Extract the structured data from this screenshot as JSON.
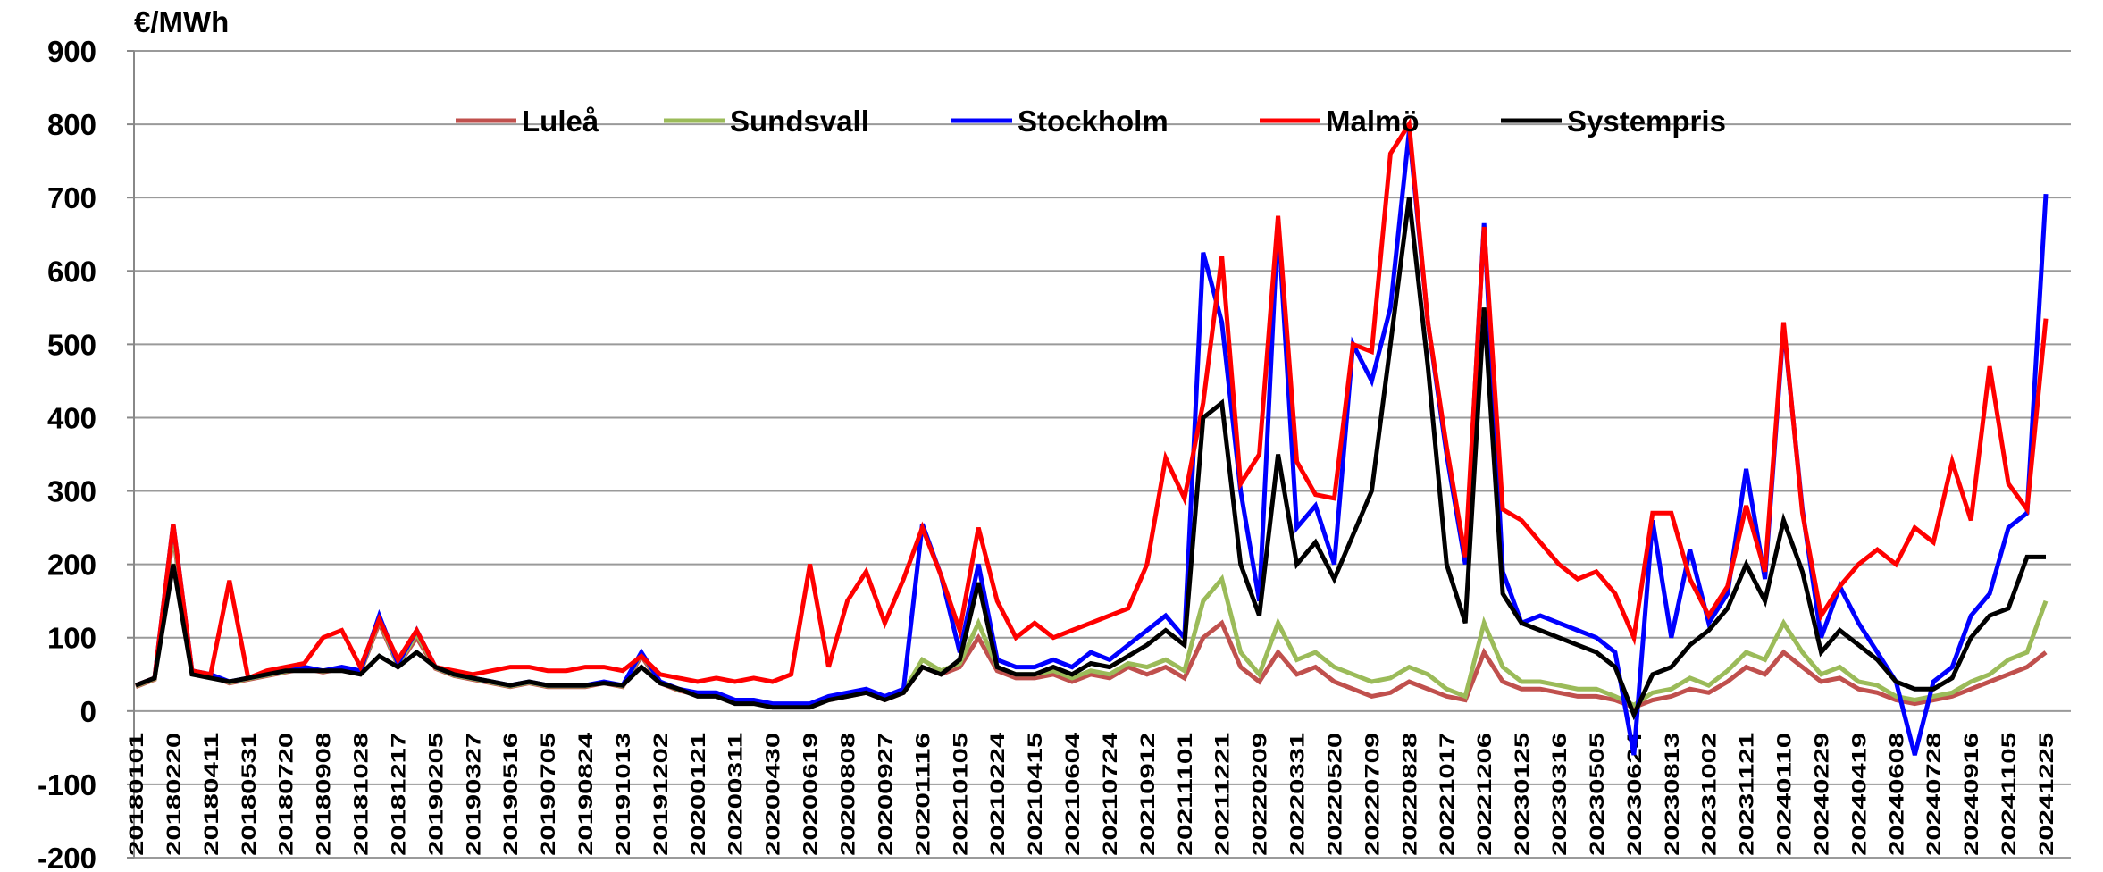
{
  "chart_data": {
    "type": "line",
    "y_label": "€/MWh",
    "categories": [
      "20180101",
      null,
      "20180220",
      null,
      "20180411",
      null,
      "20180531",
      null,
      "20180720",
      null,
      "20180908",
      null,
      "20181028",
      null,
      "20181217",
      null,
      "20190205",
      null,
      "20190327",
      null,
      "20190516",
      null,
      "20190705",
      null,
      "20190824",
      null,
      "20191013",
      null,
      "20191202",
      null,
      "20200121",
      null,
      "20200311",
      null,
      "20200430",
      null,
      "20200619",
      null,
      "20200808",
      null,
      "20200927",
      null,
      "20201116",
      null,
      "20210105",
      null,
      "20210224",
      null,
      "20210415",
      null,
      "20210604",
      null,
      "20210724",
      null,
      "20210912",
      null,
      "20211101",
      null,
      "20211221",
      null,
      "20220209",
      null,
      "20220331",
      null,
      "20220520",
      null,
      "20220709",
      null,
      "20220828",
      null,
      "20221017",
      null,
      "20221206",
      null,
      "20230125",
      null,
      "20230316",
      null,
      "20230505",
      null,
      "20230624",
      null,
      "20230813",
      null,
      "20231002",
      null,
      "20231121",
      null,
      "20240110",
      null,
      "20240229",
      null,
      "20240419",
      null,
      "20240608",
      null,
      "20240728",
      null,
      "20240916",
      null,
      "20241105",
      null,
      "20241225"
    ],
    "series": [
      {
        "name": "Luleå",
        "color": "#c0504d",
        "values": [
          33,
          43,
          240,
          52,
          48,
          38,
          43,
          48,
          53,
          58,
          53,
          58,
          53,
          120,
          62,
          100,
          58,
          48,
          43,
          38,
          33,
          38,
          33,
          33,
          33,
          38,
          33,
          75,
          38,
          28,
          22,
          22,
          12,
          12,
          8,
          8,
          8,
          15,
          20,
          25,
          15,
          25,
          60,
          50,
          60,
          100,
          55,
          45,
          45,
          50,
          40,
          50,
          45,
          60,
          50,
          60,
          45,
          100,
          120,
          60,
          40,
          80,
          50,
          60,
          40,
          30,
          20,
          25,
          40,
          30,
          20,
          15,
          80,
          40,
          30,
          30,
          25,
          20,
          20,
          15,
          5,
          15,
          20,
          30,
          25,
          40,
          60,
          50,
          80,
          60,
          40,
          45,
          30,
          25,
          15,
          10,
          15,
          20,
          30,
          40,
          50,
          60,
          80
        ]
      },
      {
        "name": "Sundsvall",
        "color": "#9bbb59",
        "values": [
          34,
          44,
          245,
          53,
          49,
          39,
          44,
          49,
          54,
          59,
          54,
          59,
          54,
          125,
          63,
          105,
          59,
          49,
          44,
          39,
          34,
          39,
          34,
          34,
          34,
          39,
          34,
          78,
          39,
          29,
          23,
          23,
          13,
          13,
          9,
          9,
          9,
          17,
          22,
          27,
          17,
          27,
          70,
          55,
          65,
          120,
          60,
          50,
          50,
          55,
          45,
          55,
          50,
          65,
          60,
          70,
          55,
          150,
          180,
          80,
          50,
          120,
          70,
          80,
          60,
          50,
          40,
          45,
          60,
          50,
          30,
          20,
          120,
          60,
          40,
          40,
          35,
          30,
          30,
          20,
          8,
          25,
          30,
          45,
          35,
          55,
          80,
          70,
          120,
          80,
          50,
          60,
          40,
          35,
          20,
          15,
          20,
          25,
          40,
          50,
          70,
          80,
          150
        ]
      },
      {
        "name": "Stockholm",
        "color": "#0000ff",
        "values": [
          35,
          45,
          255,
          55,
          50,
          40,
          45,
          50,
          55,
          60,
          55,
          60,
          55,
          130,
          65,
          110,
          60,
          50,
          45,
          40,
          35,
          40,
          35,
          35,
          35,
          40,
          35,
          80,
          40,
          30,
          25,
          25,
          15,
          15,
          10,
          10,
          10,
          20,
          25,
          30,
          20,
          30,
          255,
          185,
          80,
          200,
          70,
          60,
          60,
          70,
          60,
          80,
          70,
          90,
          110,
          130,
          100,
          625,
          530,
          300,
          150,
          670,
          250,
          280,
          200,
          500,
          450,
          550,
          790,
          530,
          350,
          200,
          665,
          190,
          120,
          130,
          120,
          110,
          100,
          80,
          -60,
          260,
          100,
          220,
          120,
          160,
          330,
          180,
          525,
          275,
          100,
          170,
          120,
          80,
          40,
          -60,
          40,
          60,
          130,
          160,
          250,
          270,
          705
        ]
      },
      {
        "name": "Malmö",
        "color": "#ff0000",
        "values": [
          35,
          45,
          255,
          55,
          50,
          178,
          45,
          55,
          60,
          65,
          100,
          110,
          60,
          125,
          70,
          110,
          60,
          55,
          50,
          55,
          60,
          60,
          55,
          55,
          60,
          60,
          55,
          75,
          50,
          45,
          40,
          45,
          40,
          45,
          40,
          50,
          200,
          60,
          150,
          190,
          120,
          180,
          250,
          185,
          110,
          250,
          150,
          100,
          120,
          100,
          110,
          120,
          130,
          140,
          200,
          345,
          290,
          420,
          620,
          310,
          350,
          675,
          340,
          295,
          290,
          500,
          490,
          760,
          800,
          530,
          360,
          210,
          660,
          275,
          260,
          230,
          200,
          180,
          190,
          160,
          100,
          270,
          270,
          180,
          130,
          170,
          280,
          190,
          530,
          270,
          130,
          170,
          200,
          220,
          200,
          250,
          230,
          340,
          260,
          470,
          310,
          275,
          535
        ]
      },
      {
        "name": "Systempris",
        "color": "#000000",
        "values": [
          35,
          45,
          200,
          50,
          45,
          40,
          45,
          50,
          55,
          55,
          55,
          55,
          50,
          75,
          60,
          80,
          60,
          50,
          45,
          40,
          35,
          40,
          35,
          35,
          35,
          38,
          35,
          60,
          38,
          30,
          20,
          20,
          10,
          10,
          5,
          5,
          5,
          15,
          20,
          25,
          15,
          25,
          60,
          50,
          70,
          175,
          60,
          50,
          50,
          60,
          50,
          65,
          60,
          75,
          90,
          110,
          90,
          400,
          420,
          200,
          130,
          350,
          200,
          230,
          180,
          240,
          300,
          500,
          700,
          470,
          200,
          120,
          550,
          160,
          120,
          110,
          100,
          90,
          80,
          60,
          -5,
          50,
          60,
          90,
          110,
          140,
          200,
          150,
          260,
          190,
          80,
          110,
          90,
          70,
          40,
          30,
          30,
          45,
          100,
          130,
          140,
          210,
          210
        ]
      }
    ],
    "ylim": [
      -200,
      900
    ],
    "yticks": [
      900,
      800,
      700,
      600,
      500,
      400,
      300,
      200,
      100,
      0,
      -100,
      -200
    ],
    "grid": true,
    "legend": "top"
  }
}
